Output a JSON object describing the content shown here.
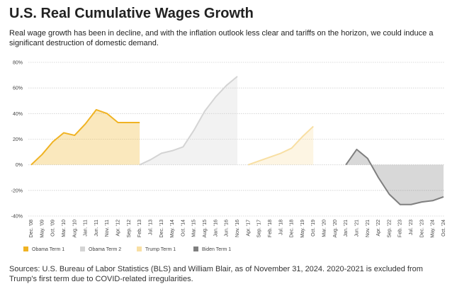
{
  "chart_data": {
    "type": "line",
    "title": "U.S. Real Cumulative Wages Growth",
    "subtitle": "Real wage growth has been in decline, and with the inflation outlook less clear and tariffs on the horizon, we could induce a significant destruction of domestic demand.",
    "source": "Sources: U.S. Bureau of Labor Statistics (BLS) and William Blair, as of November 31, 2024. 2020-2021 is excluded from Trump's first term due to COVID-related irregularities.",
    "categories": [
      "Dec. '08",
      "May. '09",
      "Oct. '09",
      "Mar. '10",
      "Aug. '10",
      "Jan. '11",
      "Jun. '11",
      "Nov. '11",
      "Apr. '12",
      "Sep. '12",
      "Feb. '13",
      "Jul. '13",
      "Dec. '13",
      "May. '14",
      "Oct. '14",
      "Mar. '15",
      "Aug. '15",
      "Jan. '16",
      "Jun. '16",
      "Nov. '16",
      "Apr. '17",
      "Sep. '17",
      "Feb. '18",
      "Jul. '18",
      "Dec. '18",
      "May. '19",
      "Oct. '19",
      "Mar. '20",
      "Aug. '20",
      "Jan. '21",
      "Jun. '21",
      "Nov. '21",
      "Apr. '22",
      "Sep. '22",
      "Feb. '23",
      "Jul. '23",
      "Dec. '23",
      "May. '24",
      "Oct. '24"
    ],
    "series": [
      {
        "name": "Obama Term 1",
        "color": "#f0b323",
        "values": [
          0,
          8,
          18,
          25,
          23,
          32,
          43,
          40,
          33,
          33,
          33,
          null,
          null,
          null,
          null,
          null,
          null,
          null,
          null,
          null,
          null,
          null,
          null,
          null,
          null,
          null,
          null,
          null,
          null,
          null,
          null,
          null,
          null,
          null,
          null,
          null,
          null,
          null,
          null
        ]
      },
      {
        "name": "Obama Term 2",
        "color": "#d4d4d4",
        "values": [
          null,
          null,
          null,
          null,
          null,
          null,
          null,
          null,
          null,
          null,
          0,
          4,
          9,
          11,
          14,
          27,
          42,
          53,
          62,
          69,
          null,
          null,
          null,
          null,
          null,
          null,
          null,
          null,
          null,
          null,
          null,
          null,
          null,
          null,
          null,
          null,
          null,
          null,
          null
        ]
      },
      {
        "name": "Trump Term 1",
        "color": "#f8dfa3",
        "values": [
          null,
          null,
          null,
          null,
          null,
          null,
          null,
          null,
          null,
          null,
          null,
          null,
          null,
          null,
          null,
          null,
          null,
          null,
          null,
          null,
          0,
          3,
          6,
          9,
          13,
          22,
          30,
          null,
          null,
          null,
          null,
          null,
          null,
          null,
          null,
          null,
          null,
          null,
          null
        ]
      },
      {
        "name": "Biden Term 1",
        "color": "#7f7f7f",
        "values": [
          null,
          null,
          null,
          null,
          null,
          null,
          null,
          null,
          null,
          null,
          null,
          null,
          null,
          null,
          null,
          null,
          null,
          null,
          null,
          null,
          null,
          null,
          null,
          null,
          null,
          null,
          null,
          null,
          null,
          0,
          12,
          5,
          -10,
          -23,
          -31,
          -31,
          -29,
          -28,
          -25
        ]
      }
    ],
    "ylim": [
      -40,
      80
    ],
    "yticks": [
      {
        "value": -40,
        "label": "-40%"
      },
      {
        "value": -20,
        "label": "-20%"
      },
      {
        "value": 0,
        "label": "0%"
      },
      {
        "value": 20,
        "label": "20%"
      },
      {
        "value": 40,
        "label": "40%"
      },
      {
        "value": 60,
        "label": "60%"
      },
      {
        "value": 80,
        "label": "80%"
      }
    ],
    "grid": true,
    "legend": "bottom"
  }
}
